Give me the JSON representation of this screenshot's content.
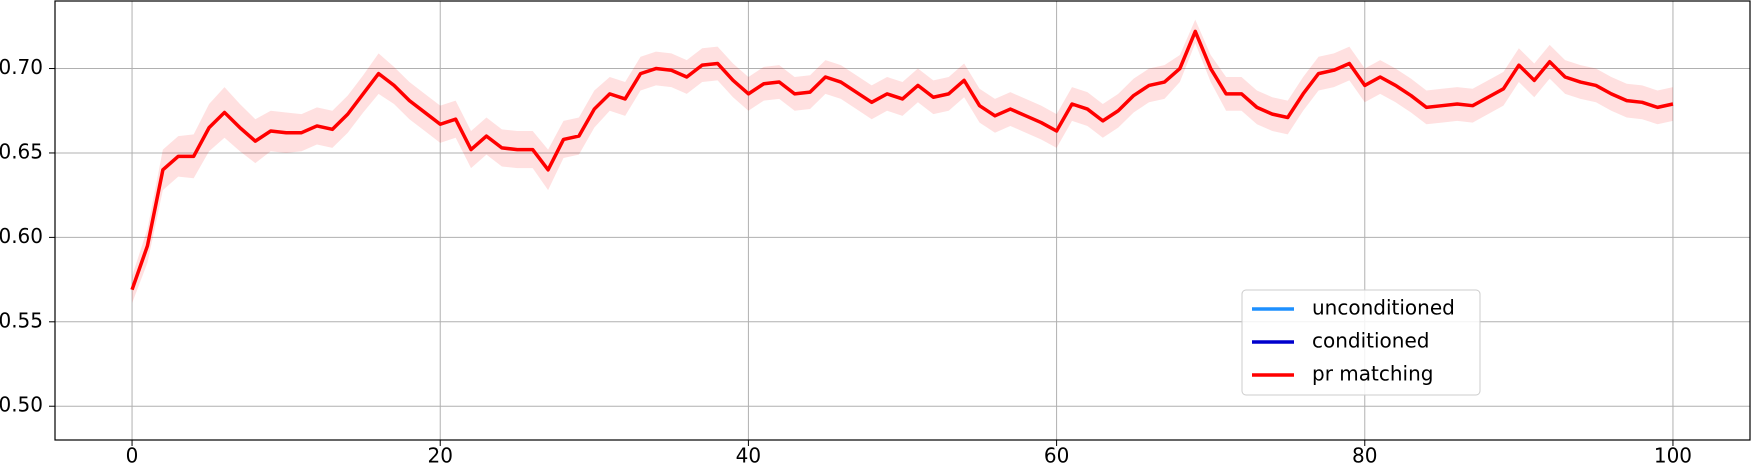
{
  "chart_data": {
    "type": "line",
    "xlim": [
      -5,
      105
    ],
    "ylim": [
      0.48,
      0.74
    ],
    "xticks": [
      0,
      20,
      40,
      60,
      80,
      100
    ],
    "yticks": [
      {
        "value": 0.5,
        "label": "0.50"
      },
      {
        "value": 0.55,
        "label": "0.55"
      },
      {
        "value": 0.6,
        "label": "0.60"
      },
      {
        "value": 0.65,
        "label": "0.65"
      },
      {
        "value": 0.7,
        "label": "0.70"
      }
    ],
    "grid": true,
    "legend": "lower right",
    "x": [
      0,
      1,
      2,
      3,
      4,
      5,
      6,
      7,
      8,
      9,
      10,
      11,
      12,
      13,
      14,
      15,
      16,
      17,
      18,
      19,
      20,
      21,
      22,
      23,
      24,
      25,
      26,
      27,
      28,
      29,
      30,
      31,
      32,
      33,
      34,
      35,
      36,
      37,
      38,
      39,
      40,
      41,
      42,
      43,
      44,
      45,
      46,
      47,
      48,
      49,
      50,
      51,
      52,
      53,
      54,
      55,
      56,
      57,
      58,
      59,
      60,
      61,
      62,
      63,
      64,
      65,
      66,
      67,
      68,
      69,
      70,
      71,
      72,
      73,
      74,
      75,
      76,
      77,
      78,
      79,
      80,
      81,
      82,
      83,
      84,
      85,
      86,
      87,
      88,
      89,
      90,
      91,
      92,
      93,
      94,
      95,
      96,
      97,
      98,
      99,
      100
    ],
    "series": [
      {
        "name": "unconditioned",
        "color": "#1e90ff"
      },
      {
        "name": "conditioned",
        "color": "#0000cd"
      },
      {
        "name": "pr matching",
        "color": "#ff0000",
        "values": [
          0.569,
          0.595,
          0.64,
          0.648,
          0.648,
          0.665,
          0.674,
          0.665,
          0.657,
          0.663,
          0.662,
          0.662,
          0.666,
          0.664,
          0.673,
          0.685,
          0.697,
          0.69,
          0.681,
          0.674,
          0.667,
          0.67,
          0.652,
          0.66,
          0.653,
          0.652,
          0.652,
          0.64,
          0.658,
          0.66,
          0.676,
          0.685,
          0.682,
          0.697,
          0.7,
          0.699,
          0.695,
          0.702,
          0.703,
          0.693,
          0.685,
          0.691,
          0.692,
          0.685,
          0.686,
          0.695,
          0.692,
          0.686,
          0.68,
          0.685,
          0.682,
          0.69,
          0.683,
          0.685,
          0.693,
          0.678,
          0.672,
          0.676,
          0.672,
          0.668,
          0.663,
          0.679,
          0.676,
          0.669,
          0.675,
          0.684,
          0.69,
          0.692,
          0.7,
          0.722,
          0.7,
          0.685,
          0.685,
          0.677,
          0.673,
          0.671,
          0.685,
          0.697,
          0.699,
          0.703,
          0.69,
          0.695,
          0.69,
          0.684,
          0.677,
          0.678,
          0.679,
          0.678,
          0.683,
          0.688,
          0.702,
          0.693,
          0.704,
          0.695,
          0.692,
          0.69,
          0.685,
          0.681,
          0.68,
          0.677,
          0.679
        ],
        "error": [
          0.008,
          0.01,
          0.012,
          0.012,
          0.013,
          0.014,
          0.015,
          0.014,
          0.013,
          0.012,
          0.012,
          0.011,
          0.011,
          0.011,
          0.011,
          0.011,
          0.012,
          0.011,
          0.011,
          0.011,
          0.011,
          0.011,
          0.011,
          0.011,
          0.011,
          0.011,
          0.011,
          0.012,
          0.011,
          0.011,
          0.011,
          0.01,
          0.01,
          0.01,
          0.01,
          0.01,
          0.01,
          0.01,
          0.01,
          0.01,
          0.01,
          0.01,
          0.01,
          0.01,
          0.01,
          0.01,
          0.01,
          0.01,
          0.01,
          0.01,
          0.01,
          0.01,
          0.01,
          0.01,
          0.01,
          0.01,
          0.01,
          0.01,
          0.01,
          0.01,
          0.01,
          0.01,
          0.01,
          0.01,
          0.01,
          0.01,
          0.01,
          0.01,
          0.008,
          0.007,
          0.008,
          0.01,
          0.01,
          0.01,
          0.01,
          0.01,
          0.01,
          0.01,
          0.01,
          0.01,
          0.01,
          0.01,
          0.01,
          0.01,
          0.01,
          0.01,
          0.01,
          0.01,
          0.01,
          0.01,
          0.01,
          0.01,
          0.01,
          0.01,
          0.01,
          0.01,
          0.01,
          0.01,
          0.01,
          0.01,
          0.01
        ]
      }
    ]
  }
}
